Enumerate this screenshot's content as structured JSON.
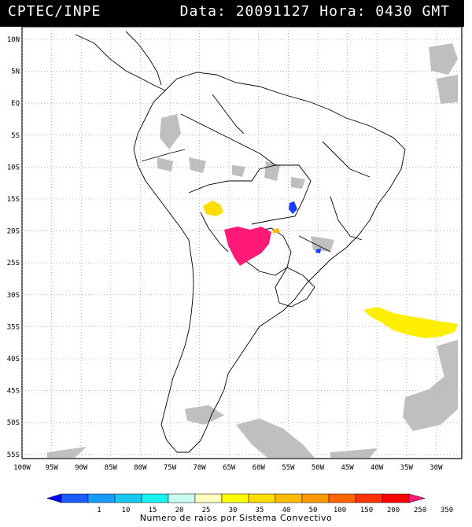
{
  "header": {
    "org": "CPTEC/INPE",
    "date_label": "Data:",
    "date_value": "20091127",
    "time_label": "Hora:",
    "time_value": "0430",
    "tz": "GMT"
  },
  "map": {
    "lat_labels": [
      "10N",
      "5N",
      "EQ",
      "5S",
      "10S",
      "15S",
      "20S",
      "25S",
      "30S",
      "35S",
      "40S",
      "45S",
      "50S",
      "55S"
    ],
    "lon_labels": [
      "100W",
      "95W",
      "90W",
      "85W",
      "80W",
      "75W",
      "70W",
      "65W",
      "60W",
      "55W",
      "50W",
      "45W",
      "40W",
      "35W",
      "30W"
    ],
    "lat_values": [
      10,
      5,
      0,
      -5,
      -10,
      -15,
      -20,
      -25,
      -30,
      -35,
      -40,
      -45,
      -50,
      -55
    ],
    "lon_values": [
      -100,
      -95,
      -90,
      -85,
      -80,
      -75,
      -70,
      -65,
      -60,
      -55,
      -50,
      -45,
      -40,
      -35,
      -30
    ],
    "systems": [
      {
        "name": "bolivia-system",
        "color": "#ffdd00"
      },
      {
        "name": "paraguay-system",
        "color": "#ff1a78"
      },
      {
        "name": "chaco-east-system",
        "color": "#ffbb00"
      },
      {
        "name": "mato-grosso-system",
        "color": "#1a3cff"
      },
      {
        "name": "parana-system",
        "color": "#1a3cff"
      },
      {
        "name": "atlantic-system",
        "color": "#ffee00"
      }
    ]
  },
  "legend": {
    "title": "Numero de raios por Sistema Convectivo",
    "values": [
      "1",
      "10",
      "15",
      "20",
      "25",
      "30",
      "35",
      "40",
      "50",
      "100",
      "150",
      "200",
      "250",
      "350"
    ],
    "colors": [
      "#0000ff",
      "#1a5cff",
      "#1a9cff",
      "#19c8f0",
      "#19f0f0",
      "#c8fff0",
      "#ffffc0",
      "#ffff00",
      "#ffdd00",
      "#ffbb00",
      "#ff9900",
      "#ff6600",
      "#ff3300",
      "#ff0000",
      "#ff1a78"
    ]
  }
}
